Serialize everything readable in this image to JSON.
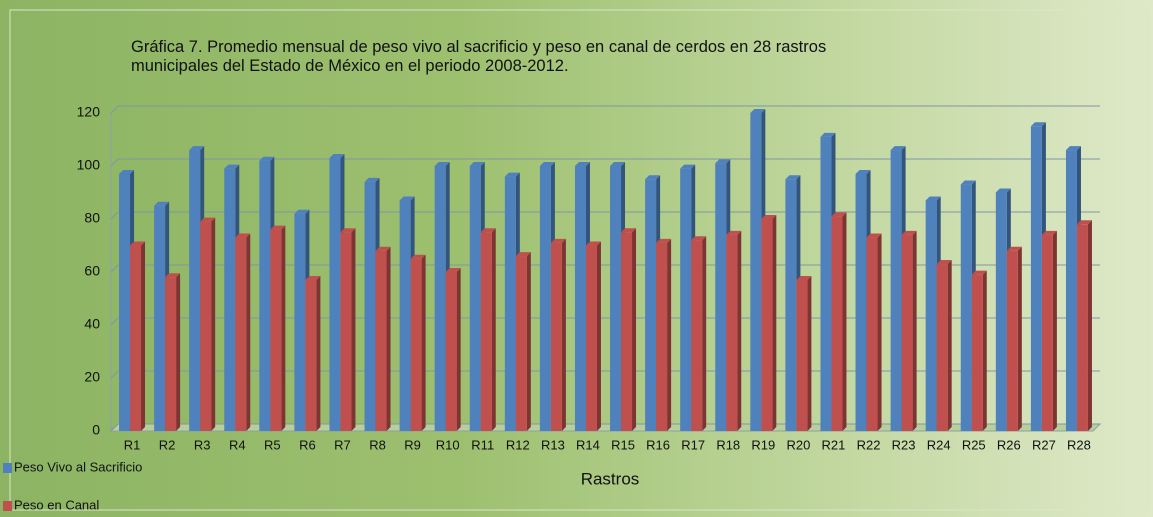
{
  "chart_data": {
    "type": "bar",
    "title": "Gráfica 7.   Promedio mensual de peso vivo al sacrificio y peso en canal de cerdos en 28 rastros municipales del Estado de México en el periodo 2008-2012.",
    "x_label": "Rastros",
    "categories": [
      "R1",
      "R2",
      "R3",
      "R4",
      "R5",
      "R6",
      "R7",
      "R8",
      "R9",
      "R10",
      "R11",
      "R12",
      "R13",
      "R14",
      "R15",
      "R16",
      "R17",
      "R18",
      "R19",
      "R20",
      "R21",
      "R22",
      "R23",
      "R24",
      "R25",
      "R26",
      "R27",
      "R28"
    ],
    "series": [
      {
        "name": "Peso Vivo al Sacrificio",
        "color": "#4f81bd",
        "values": [
          97,
          85,
          106,
          99,
          102,
          82,
          103,
          94,
          87,
          100,
          100,
          96,
          100,
          100,
          100,
          95,
          99,
          101,
          120,
          95,
          111,
          97,
          106,
          87,
          93,
          90,
          115,
          106
        ]
      },
      {
        "name": "Peso en Canal",
        "color": "#c0504d",
        "values": [
          70,
          58,
          79,
          73,
          76,
          57,
          75,
          68,
          65,
          60,
          75,
          66,
          71,
          70,
          75,
          71,
          72,
          74,
          80,
          57,
          81,
          73,
          74,
          63,
          59,
          68,
          74,
          78
        ]
      }
    ],
    "ylim": [
      0,
      120
    ],
    "yticks": [
      0,
      20,
      40,
      60,
      80,
      100,
      120
    ],
    "grid": true,
    "legend": "bottom-left"
  }
}
